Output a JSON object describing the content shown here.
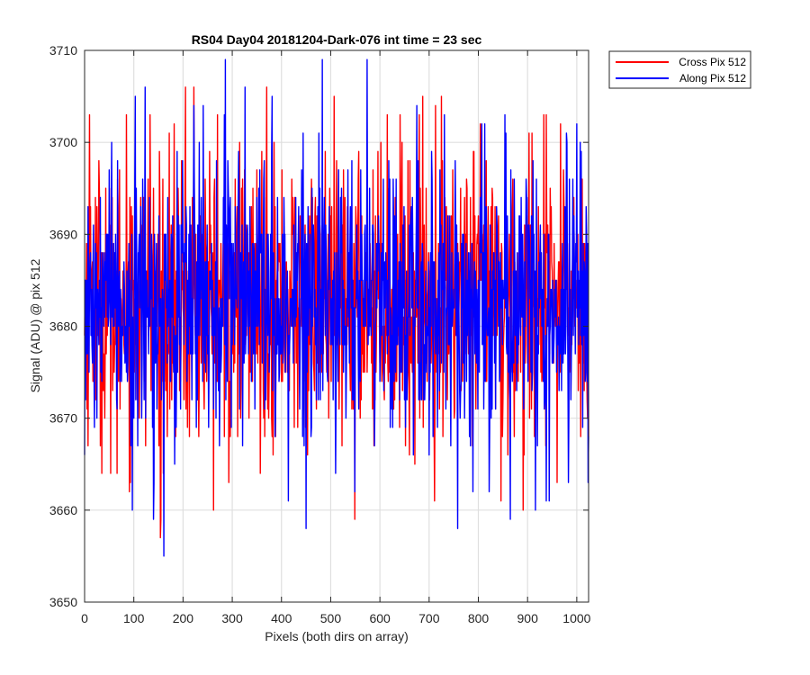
{
  "chart_data": {
    "type": "line",
    "title": "RS04 Day04 20181204-Dark-076 int time = 23 sec",
    "xlabel": "Pixels (both dirs on array)",
    "ylabel": "Signal (ADU) @ pix 512",
    "xlim": [
      0,
      1024
    ],
    "ylim": [
      3650,
      3710
    ],
    "xticks": [
      "0",
      "100",
      "200",
      "300",
      "400",
      "500",
      "600",
      "700",
      "800",
      "900",
      "1000"
    ],
    "yticks": [
      "3650",
      "3660",
      "3670",
      "3680",
      "3690",
      "3700",
      "3710"
    ],
    "grid": true,
    "legend_position": "outside-top-right",
    "series": [
      {
        "name": "Cross Pix 512",
        "color": "#ff0000",
        "mean": 3683,
        "points": [
          [
            0,
            3679
          ],
          [
            10,
            3703
          ],
          [
            24,
            3674
          ],
          [
            53,
            3664
          ],
          [
            66,
            3664
          ],
          [
            85,
            3703
          ],
          [
            101,
            3675
          ],
          [
            133,
            3703
          ],
          [
            155,
            3659
          ],
          [
            160,
            3664
          ],
          [
            185,
            3668
          ],
          [
            205,
            3706
          ],
          [
            213,
            3668
          ],
          [
            222,
            3706
          ],
          [
            232,
            3668
          ],
          [
            270,
            3703
          ],
          [
            284,
            3668
          ],
          [
            293,
            3663
          ],
          [
            370,
            3706
          ],
          [
            380,
            3670
          ],
          [
            433,
            3669
          ],
          [
            449,
            3669
          ],
          [
            523,
            3667
          ],
          [
            549,
            3659
          ],
          [
            615,
            3703
          ],
          [
            630,
            3672
          ],
          [
            645,
            3700
          ],
          [
            660,
            3666
          ],
          [
            680,
            3703
          ],
          [
            725,
            3705
          ],
          [
            788,
            3667
          ],
          [
            846,
            3661
          ],
          [
            860,
            3666
          ],
          [
            891,
            3660
          ],
          [
            909,
            3701
          ],
          [
            937,
            3667
          ],
          [
            960,
            3663
          ],
          [
            1010,
            3690
          ],
          [
            1024,
            3668
          ]
        ]
      },
      {
        "name": "Along Pix 512",
        "color": "#0000ff",
        "mean": 3683,
        "points": [
          [
            0,
            3666
          ],
          [
            20,
            3669
          ],
          [
            35,
            3674
          ],
          [
            55,
            3700
          ],
          [
            70,
            3685
          ],
          [
            97,
            3660
          ],
          [
            103,
            3705
          ],
          [
            140,
            3659
          ],
          [
            161,
            3655
          ],
          [
            222,
            3704
          ],
          [
            267,
            3670
          ],
          [
            286,
            3709
          ],
          [
            298,
            3669
          ],
          [
            326,
            3706
          ],
          [
            346,
            3671
          ],
          [
            381,
            3705
          ],
          [
            414,
            3661
          ],
          [
            476,
            3701
          ],
          [
            510,
            3664
          ],
          [
            538,
            3676
          ],
          [
            574,
            3709
          ],
          [
            589,
            3667
          ],
          [
            600,
            3674
          ],
          [
            621,
            3669
          ],
          [
            640,
            3672
          ],
          [
            675,
            3704
          ],
          [
            700,
            3666
          ],
          [
            731,
            3703
          ],
          [
            758,
            3658
          ],
          [
            784,
            3667
          ],
          [
            865,
            3659
          ],
          [
            903,
            3691
          ],
          [
            935,
            3672
          ],
          [
            965,
            3680
          ],
          [
            983,
            3663
          ],
          [
            1007,
            3700
          ],
          [
            1024,
            3668
          ]
        ]
      }
    ]
  }
}
